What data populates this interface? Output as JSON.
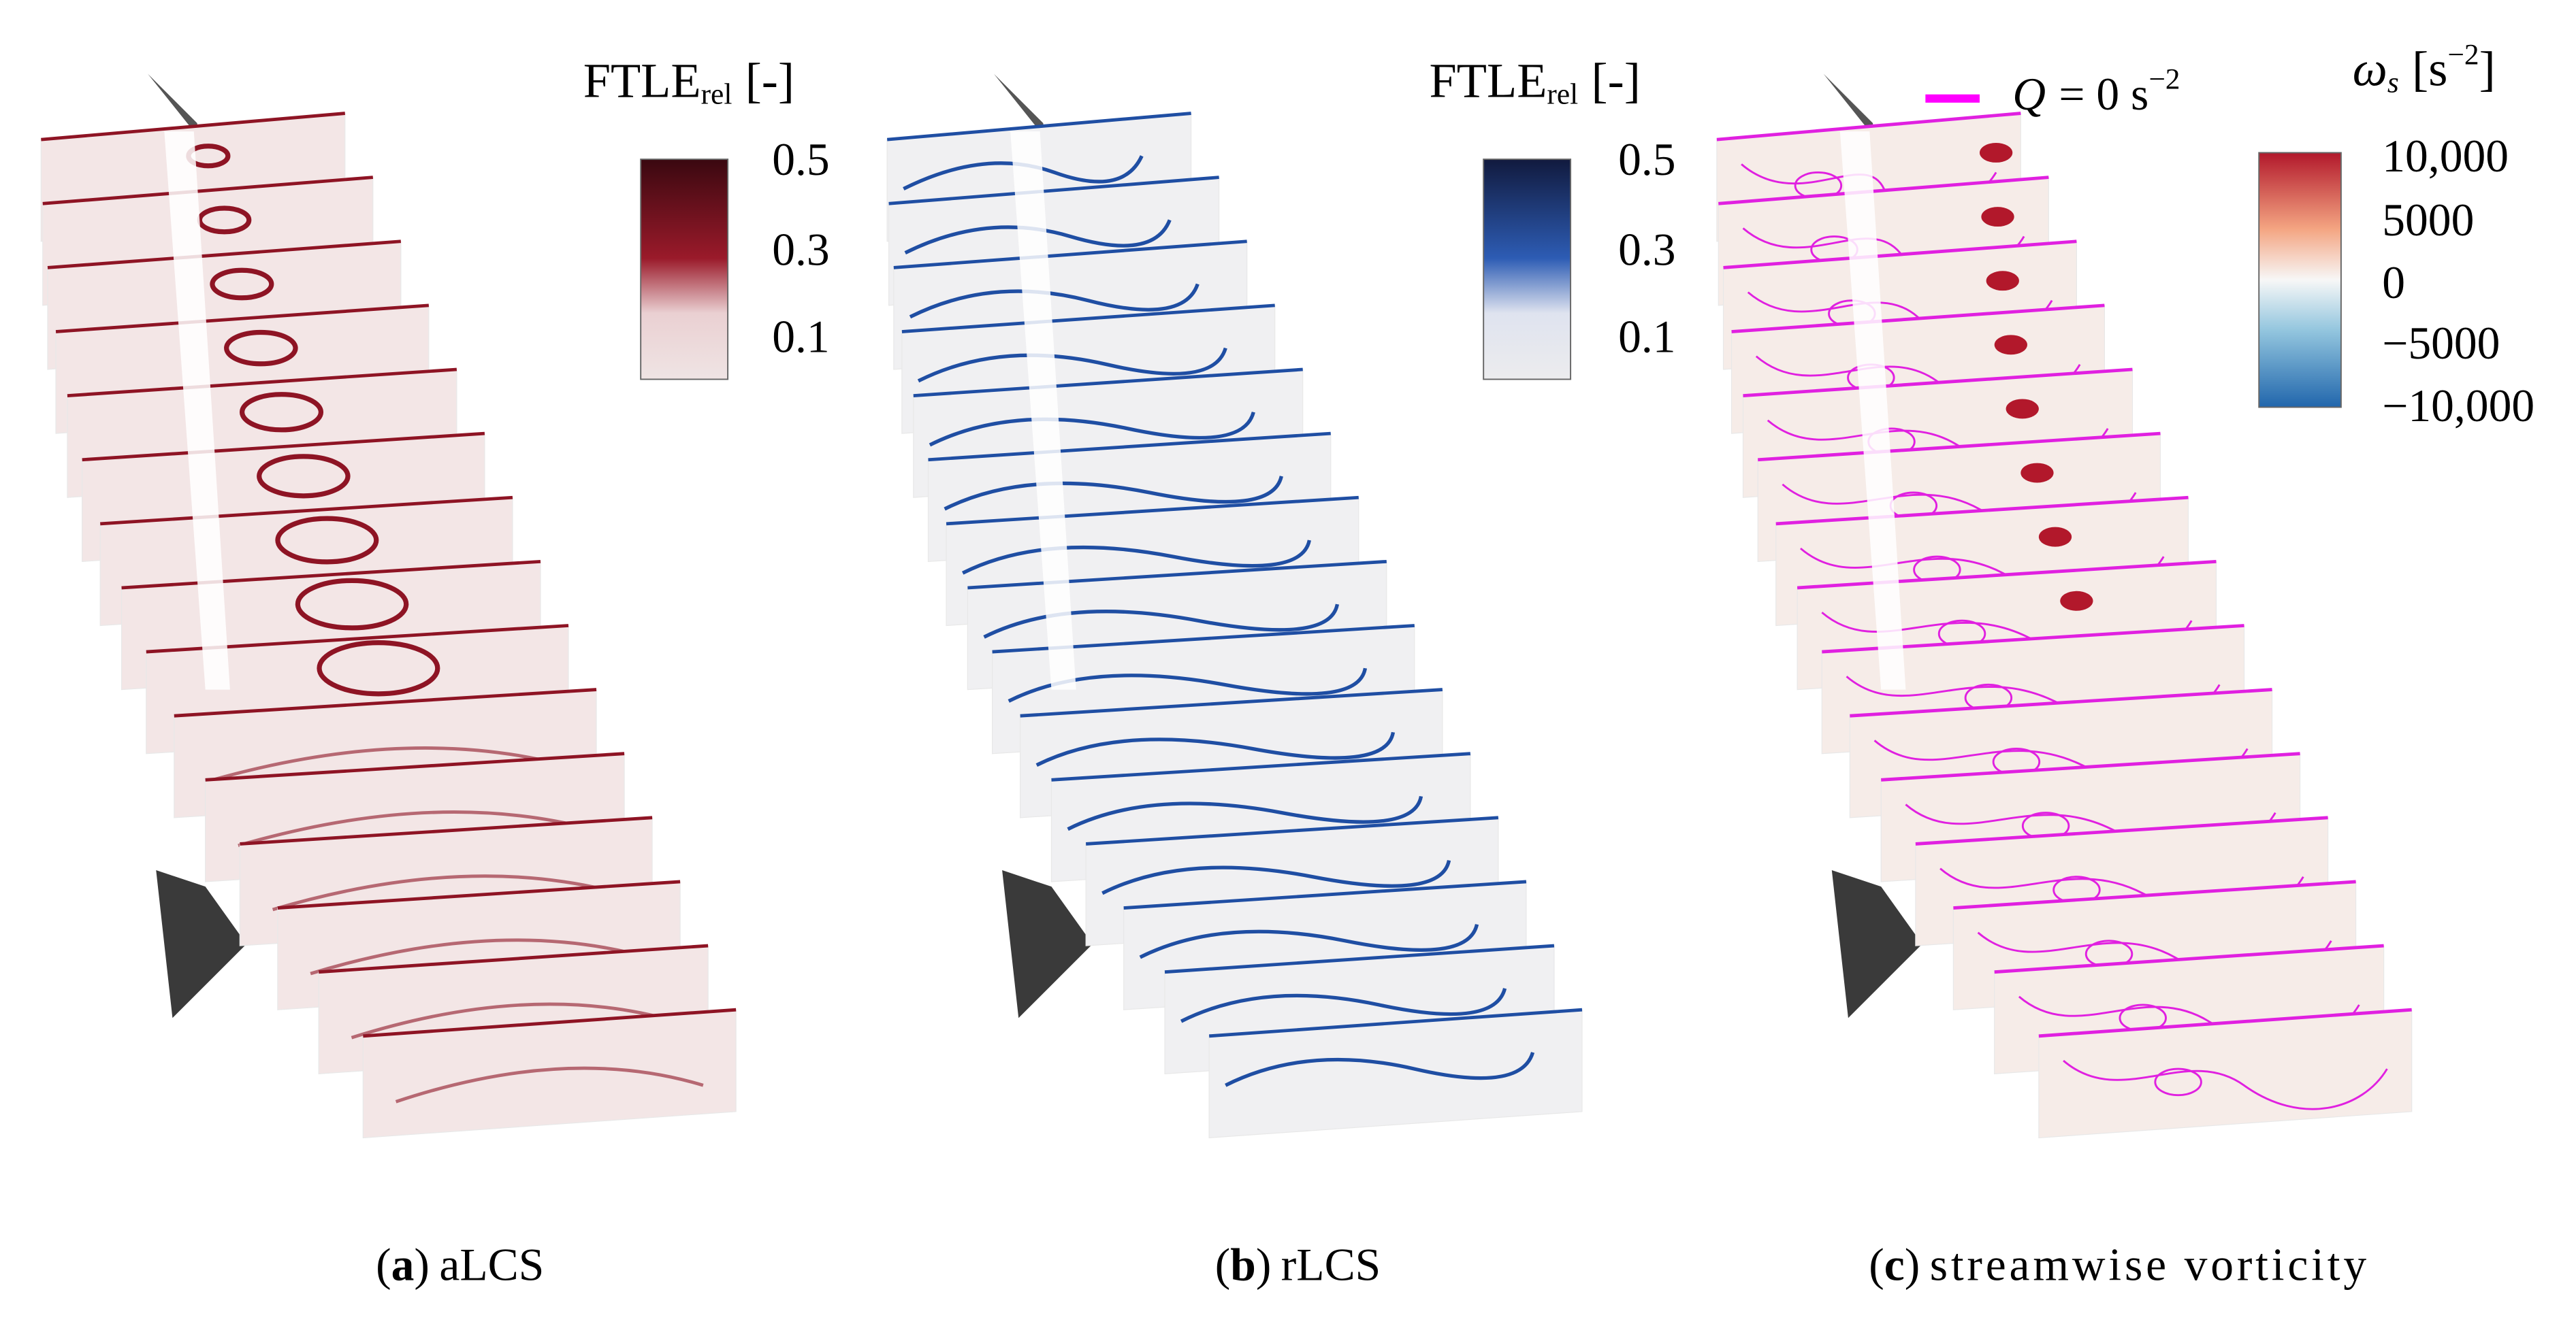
{
  "panels": [
    {
      "caption": {
        "open": "(",
        "letter": "a",
        "close": ")",
        "text": "aLCS"
      },
      "colorbar": {
        "title": "FTLE",
        "title_sub": "rel",
        "unit": "[-]",
        "ticks": [
          "0.5",
          "0.3",
          "0.1"
        ]
      }
    },
    {
      "caption": {
        "open": "(",
        "letter": "b",
        "close": ")",
        "text": "rLCS"
      },
      "colorbar": {
        "title": "FTLE",
        "title_sub": "rel",
        "unit": "[-]",
        "ticks": [
          "0.5",
          "0.3",
          "0.1"
        ]
      }
    },
    {
      "caption": {
        "open": "(",
        "letter": "c",
        "close": ")",
        "text": "streamwise vorticity"
      },
      "colorbar": {
        "title": "ω",
        "title_sub": "s",
        "unit": "[s",
        "unit_sup": "−2",
        "unit_close": "]",
        "ticks": [
          "10,000",
          "5000",
          "0",
          "−5000",
          "−10,000"
        ]
      },
      "legend": {
        "symbol": "Q",
        "text": "= 0 s",
        "sup": "−2"
      }
    }
  ]
}
